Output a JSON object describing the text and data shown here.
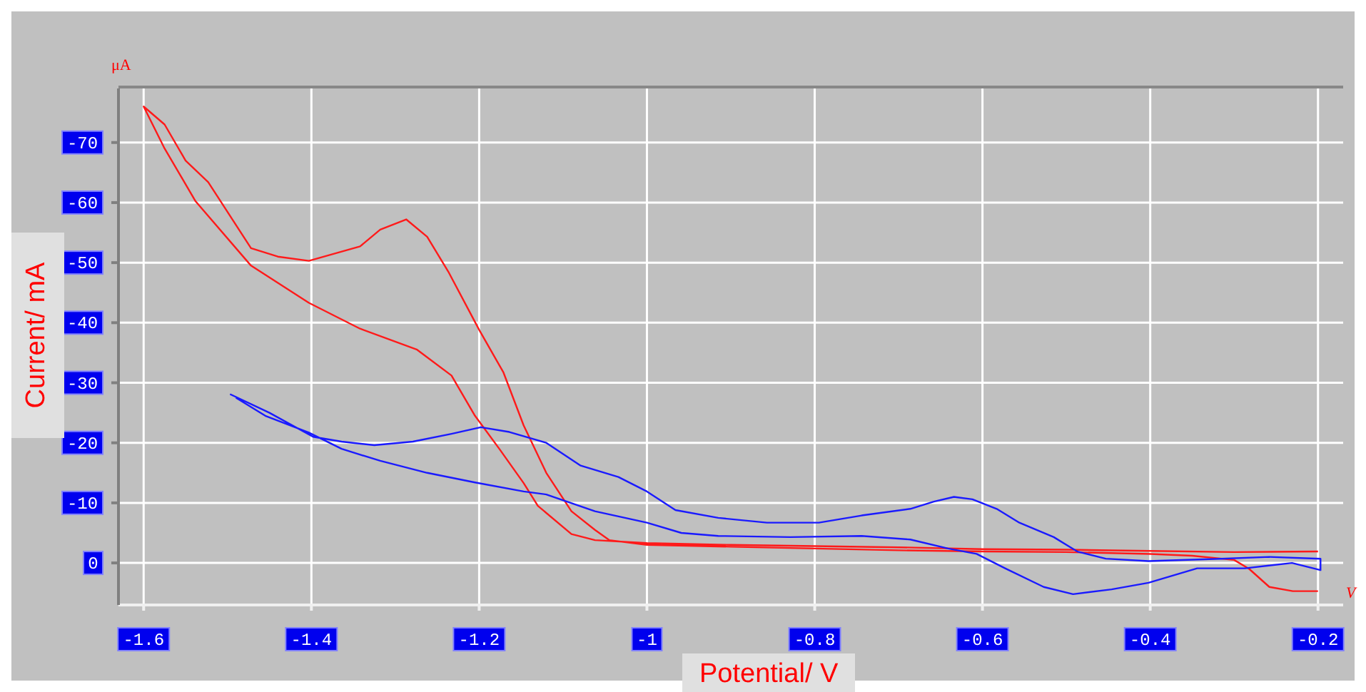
{
  "chart_data": {
    "type": "line",
    "xlabel": "Potential/ V",
    "ylabel": "Current/ mA",
    "annotations": [
      "μA",
      "V"
    ],
    "xlim": [
      -1.63,
      -0.17
    ],
    "ylim": [
      7,
      -79
    ],
    "xticks": [
      -1.6,
      -1.4,
      -1.2,
      -1,
      -0.8,
      -0.6,
      -0.4,
      -0.2
    ],
    "yticks": [
      0,
      -10,
      -20,
      -30,
      -40,
      -50,
      -60,
      -70
    ],
    "grid": true,
    "marker": "none",
    "line_style": "solid",
    "series": [
      {
        "color": "#ff1a1a",
        "x": [
          -0.2,
          -0.3,
          -0.4,
          -0.5,
          -0.6,
          -0.7,
          -0.8,
          -0.9,
          -1.0,
          -1.062,
          -1.09,
          -1.13,
          -1.147,
          -1.176,
          -1.205,
          -1.233,
          -1.274,
          -1.342,
          -1.403,
          -1.472,
          -1.538,
          -1.575,
          -1.6,
          -1.575,
          -1.55,
          -1.523,
          -1.472,
          -1.44,
          -1.403,
          -1.342,
          -1.318,
          -1.287,
          -1.262,
          -1.236,
          -1.2,
          -1.171,
          -1.147,
          -1.12,
          -1.09,
          -1.062,
          -1.045,
          -1.0,
          -0.9,
          -0.8,
          -0.7,
          -0.6,
          -0.5,
          -0.4,
          -0.35,
          -0.3,
          -0.282,
          -0.258,
          -0.23,
          -0.2
        ],
        "values": [
          -1.9,
          -1.8,
          -2.0,
          -2.2,
          -2.3,
          -2.6,
          -2.8,
          -3.0,
          -3.3,
          -3.8,
          -4.8,
          -9.5,
          -13.3,
          -19,
          -24.5,
          -31.2,
          -35.5,
          -39,
          -43.3,
          -49.5,
          -60.2,
          -69,
          -76,
          -73,
          -67,
          -63.4,
          -52.4,
          -51,
          -50.3,
          -52.7,
          -55.5,
          -57.2,
          -54.3,
          -48.3,
          -38.8,
          -31.7,
          -22.9,
          -15,
          -8.6,
          -5.5,
          -3.8,
          -3.0,
          -2.7,
          -2.4,
          -2.1,
          -1.9,
          -1.8,
          -1.5,
          -1.2,
          -0.5,
          1,
          4,
          4.7,
          4.7
        ]
      },
      {
        "color": "#1a1aff",
        "x": [
          -1.497,
          -1.45,
          -1.398,
          -1.364,
          -1.325,
          -1.279,
          -1.233,
          -1.198,
          -1.164,
          -1.12,
          -1.079,
          -1.034,
          -1.0,
          -0.966,
          -0.915,
          -0.857,
          -0.795,
          -0.744,
          -0.686,
          -0.658,
          -0.634,
          -0.612,
          -0.583,
          -0.556,
          -0.515,
          -0.487,
          -0.453,
          -0.402,
          -0.316,
          -0.258,
          -0.197,
          -0.197,
          -0.231,
          -0.287,
          -0.344,
          -0.402,
          -0.446,
          -0.492,
          -0.527,
          -0.573,
          -0.607,
          -0.641,
          -0.686,
          -0.744,
          -0.829,
          -0.915,
          -0.959,
          -1.0,
          -1.062,
          -1.12,
          -1.147,
          -1.205,
          -1.262,
          -1.318,
          -1.364,
          -1.403,
          -1.455,
          -1.49
        ],
        "values": [
          -28.1,
          -25,
          -21,
          -20.2,
          -19.6,
          -20.2,
          -21.5,
          -22.6,
          -21.8,
          -20,
          -16.2,
          -14.3,
          -11.9,
          -8.8,
          -7.5,
          -6.7,
          -6.7,
          -7.9,
          -9,
          -10.2,
          -11,
          -10.6,
          -9,
          -6.7,
          -4.3,
          -1.9,
          -0.7,
          -0.3,
          -0.7,
          -1,
          -0.7,
          1.2,
          0,
          0.9,
          0.9,
          3.3,
          4.4,
          5.2,
          4,
          0.9,
          -1.5,
          -2.4,
          -3.9,
          -4.5,
          -4.3,
          -4.5,
          -5,
          -6.7,
          -8.6,
          -11.4,
          -11.9,
          -13.4,
          -15,
          -17,
          -19,
          -21.7,
          -24.5,
          -27.5
        ]
      }
    ]
  }
}
